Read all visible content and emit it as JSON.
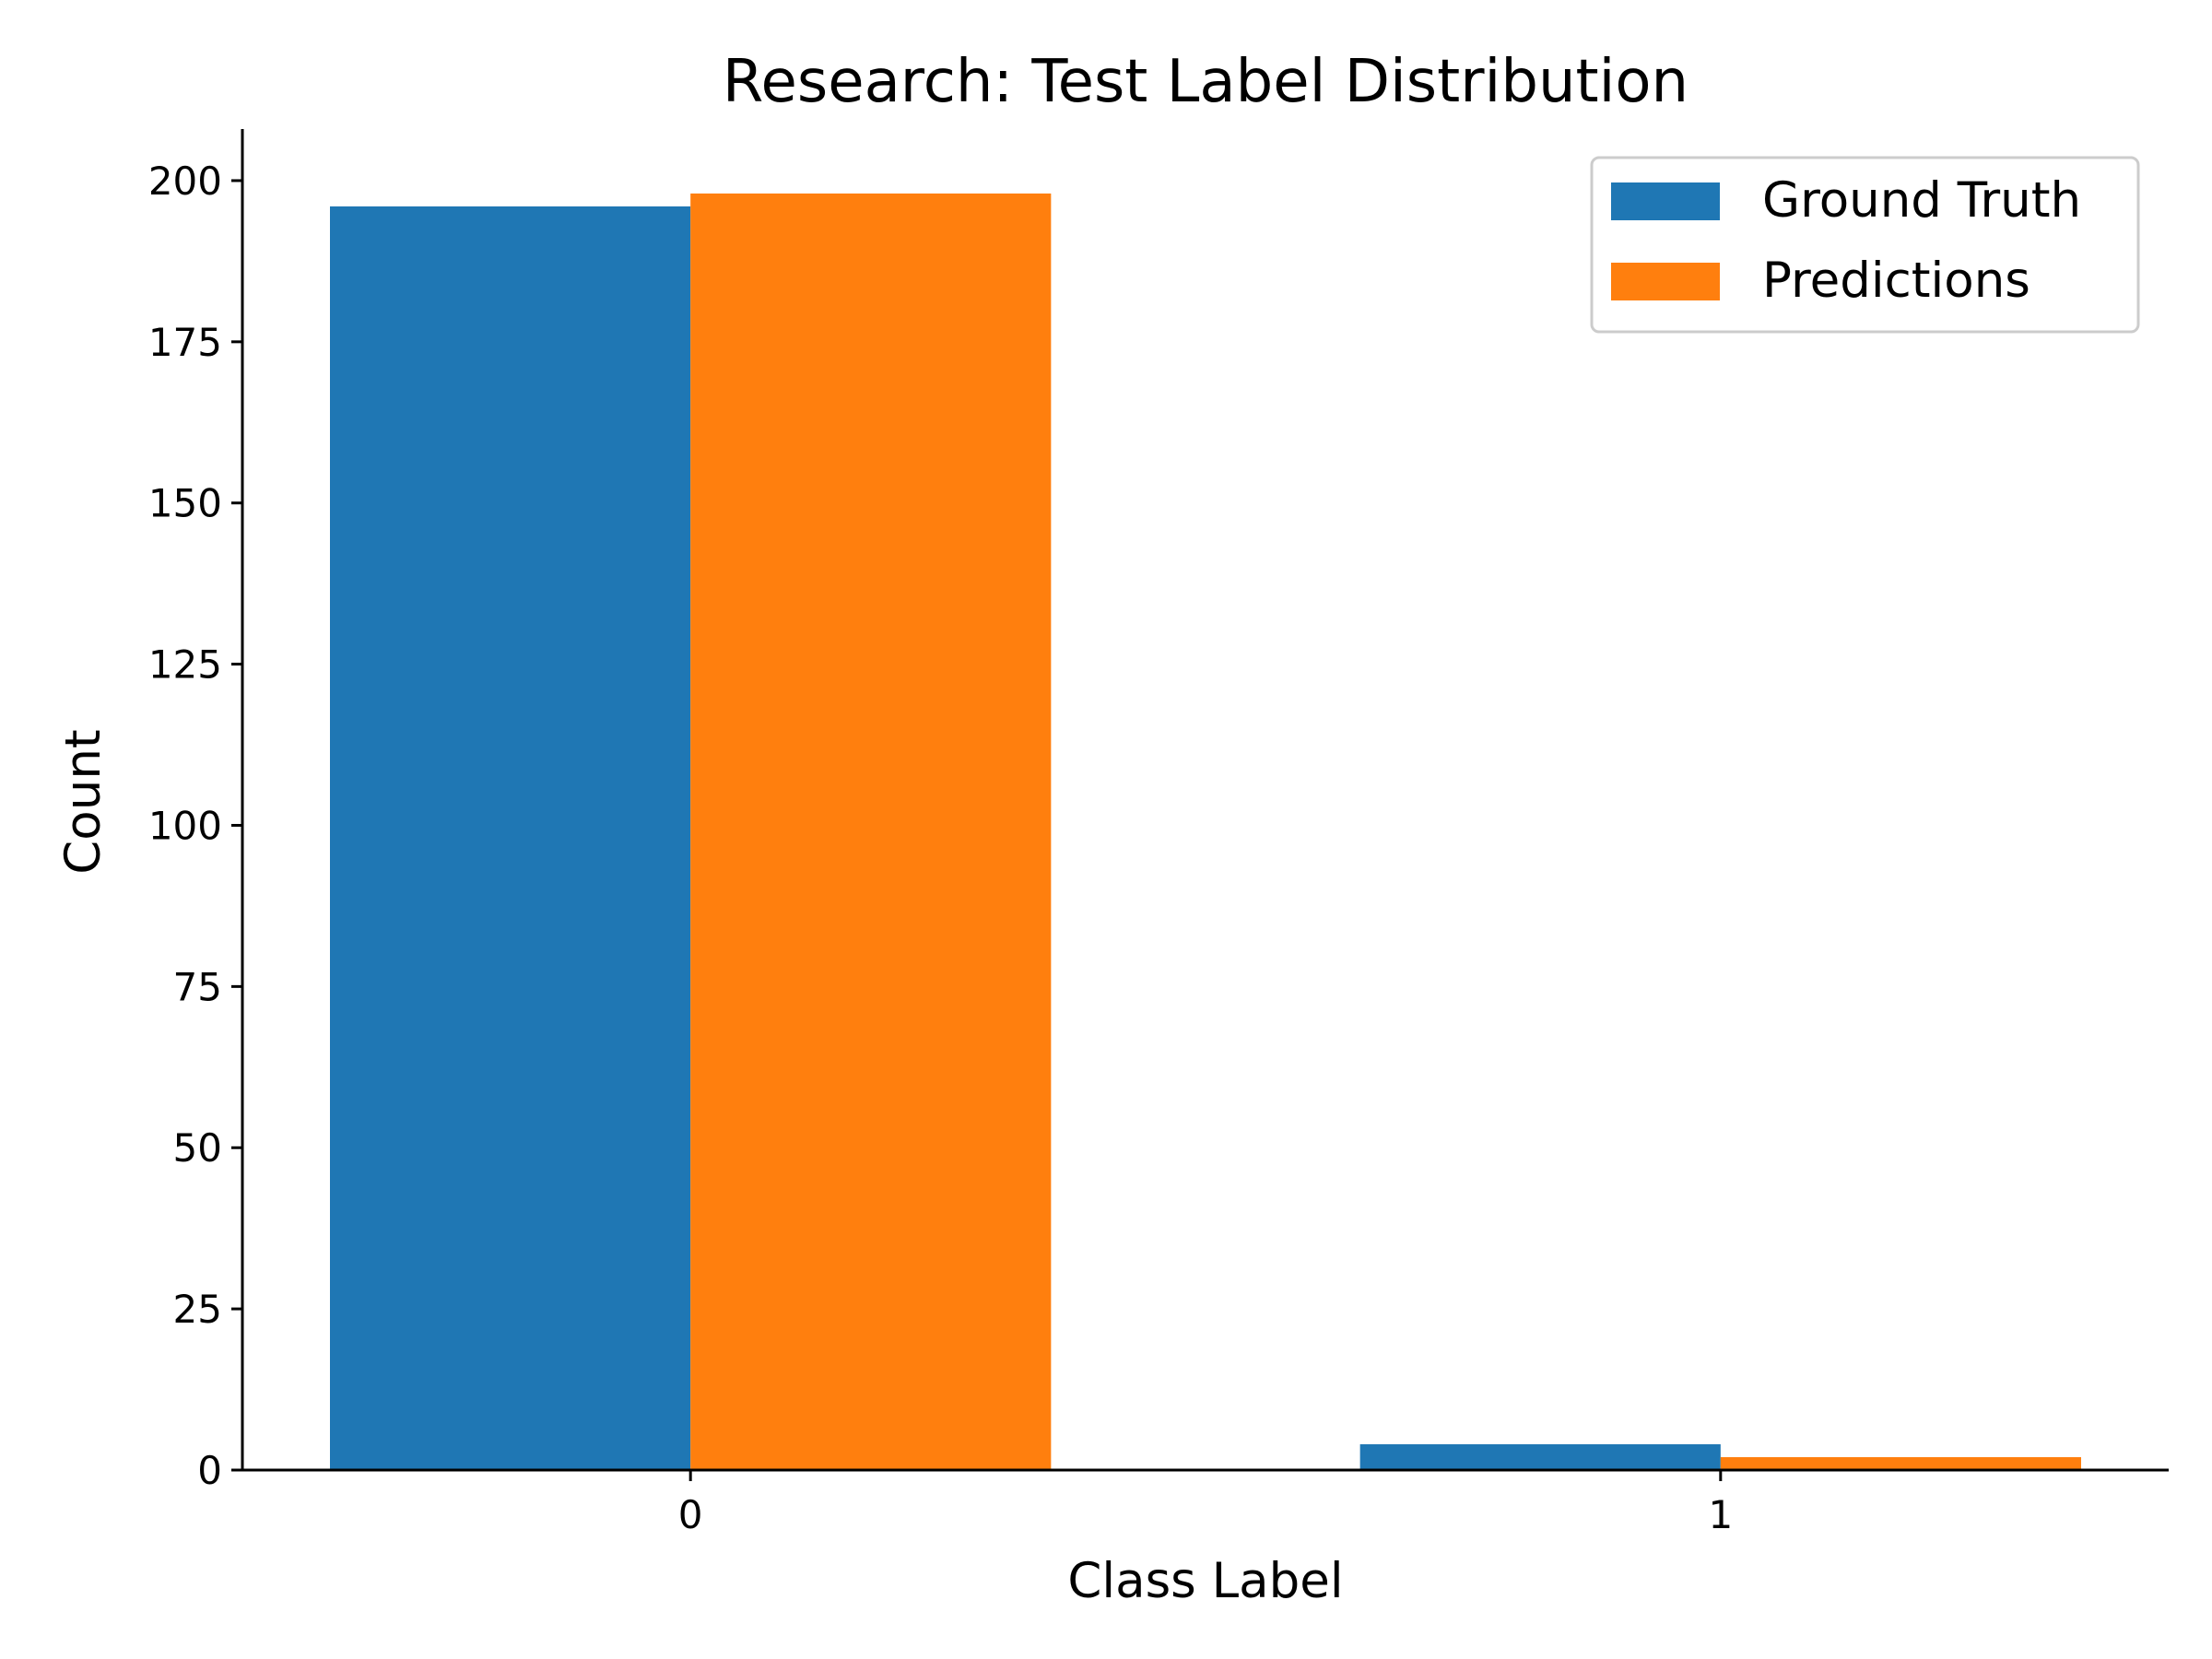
{
  "chart_data": {
    "type": "bar",
    "title": "Research: Test Label Distribution",
    "xlabel": "Class Label",
    "ylabel": "Count",
    "categories": [
      "0",
      "1"
    ],
    "series": [
      {
        "name": "Ground Truth",
        "values": [
          196,
          4
        ],
        "color": "#1f77b4"
      },
      {
        "name": "Predictions",
        "values": [
          198,
          2
        ],
        "color": "#ff7f0e"
      }
    ],
    "ylim": [
      0,
      208
    ],
    "yticks": [
      0,
      25,
      50,
      75,
      100,
      125,
      150,
      175,
      200
    ],
    "grid": false,
    "legend_position": "top-right"
  }
}
